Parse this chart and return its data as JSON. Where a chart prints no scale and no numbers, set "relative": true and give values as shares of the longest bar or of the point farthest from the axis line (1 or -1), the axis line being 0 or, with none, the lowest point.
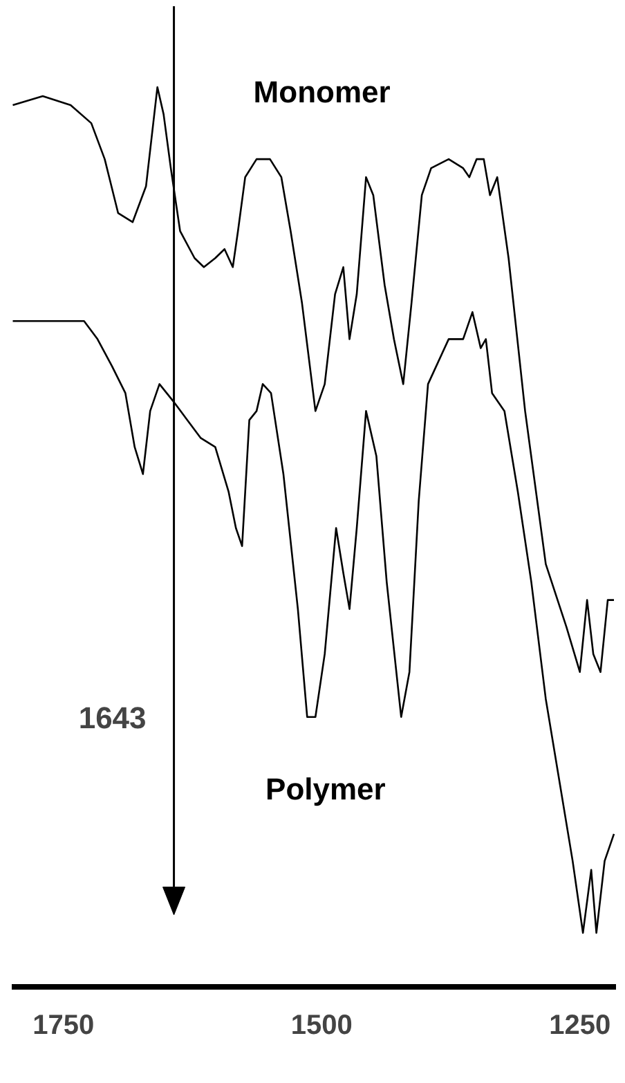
{
  "chart_data": {
    "type": "line",
    "relative": true,
    "xlim": [
      1800,
      1215
    ],
    "xticks": [
      1750,
      1500,
      1250
    ],
    "tick_labels": "x",
    "grid": false,
    "legend": false,
    "series": [
      {
        "name": "Monomer",
        "color": "#000000",
        "x": [
          1799,
          1770,
          1743,
          1723,
          1710,
          1697,
          1683,
          1670,
          1663,
          1659,
          1653,
          1646,
          1637,
          1623,
          1614,
          1603,
          1594,
          1586,
          1581,
          1574,
          1563,
          1550,
          1539,
          1530,
          1519,
          1506,
          1497,
          1487,
          1479,
          1473,
          1466,
          1457,
          1450,
          1439,
          1430,
          1421,
          1413,
          1403,
          1394,
          1377,
          1363,
          1357,
          1350,
          1343,
          1337,
          1330,
          1319,
          1303,
          1283,
          1263,
          1250,
          1243,
          1237,
          1230,
          1223,
          1217
        ],
        "values": [
          0.98,
          0.99,
          0.98,
          0.96,
          0.92,
          0.86,
          0.85,
          0.89,
          0.96,
          1.0,
          0.97,
          0.91,
          0.84,
          0.81,
          0.8,
          0.81,
          0.82,
          0.8,
          0.84,
          0.9,
          0.92,
          0.92,
          0.9,
          0.84,
          0.76,
          0.64,
          0.67,
          0.77,
          0.8,
          0.72,
          0.77,
          0.9,
          0.88,
          0.78,
          0.72,
          0.67,
          0.76,
          0.88,
          0.91,
          0.92,
          0.91,
          0.9,
          0.92,
          0.92,
          0.88,
          0.9,
          0.81,
          0.64,
          0.47,
          0.4,
          0.35,
          0.43,
          0.37,
          0.35,
          0.43,
          0.43
        ]
      },
      {
        "name": "Polymer",
        "color": "#000000",
        "x": [
          1799,
          1757,
          1730,
          1717,
          1703,
          1690,
          1681,
          1673,
          1666,
          1657,
          1643,
          1630,
          1617,
          1603,
          1590,
          1583,
          1577,
          1570,
          1563,
          1557,
          1549,
          1537,
          1523,
          1514,
          1506,
          1497,
          1486,
          1479,
          1473,
          1466,
          1457,
          1447,
          1437,
          1423,
          1415,
          1406,
          1397,
          1377,
          1363,
          1354,
          1346,
          1341,
          1335,
          1323,
          1310,
          1297,
          1283,
          1270,
          1257,
          1247,
          1239,
          1234,
          1226,
          1217
        ],
        "values": [
          0.74,
          0.74,
          0.74,
          0.72,
          0.69,
          0.66,
          0.6,
          0.57,
          0.64,
          0.67,
          0.65,
          0.63,
          0.61,
          0.6,
          0.55,
          0.51,
          0.49,
          0.63,
          0.64,
          0.67,
          0.66,
          0.57,
          0.42,
          0.3,
          0.3,
          0.37,
          0.51,
          0.46,
          0.42,
          0.51,
          0.64,
          0.59,
          0.45,
          0.3,
          0.35,
          0.54,
          0.67,
          0.72,
          0.72,
          0.75,
          0.71,
          0.72,
          0.66,
          0.64,
          0.55,
          0.45,
          0.32,
          0.23,
          0.14,
          0.06,
          0.13,
          0.06,
          0.14,
          0.17
        ]
      }
    ],
    "ref_lines": [
      {
        "axis": "x",
        "value": 1643,
        "label": "1643"
      }
    ]
  }
}
